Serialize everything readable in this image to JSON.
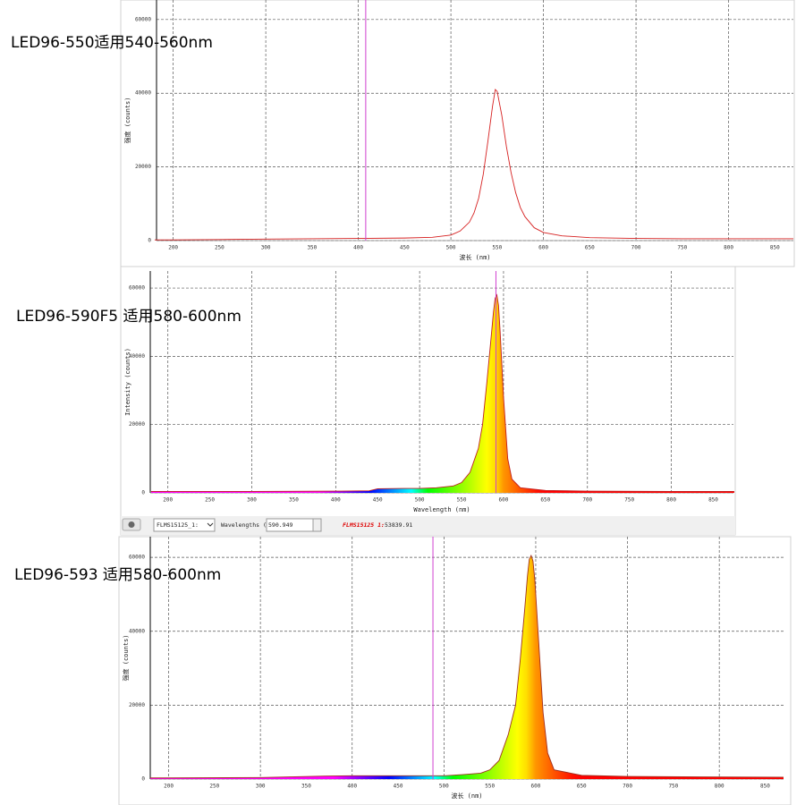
{
  "chart_data": [
    {
      "type": "line",
      "title": "LED96-550适用540-560nm",
      "x_label": "波长 (nm)",
      "y_label": "强度 (counts)",
      "x": [
        180,
        200,
        250,
        300,
        350,
        400,
        450,
        480,
        500,
        510,
        520,
        525,
        530,
        535,
        540,
        545,
        548,
        550,
        555,
        560,
        565,
        570,
        575,
        580,
        590,
        600,
        620,
        650,
        700,
        750,
        800,
        870
      ],
      "values": [
        200,
        200,
        300,
        400,
        500,
        600,
        700,
        900,
        1500,
        2600,
        5000,
        7500,
        11500,
        18000,
        27000,
        36500,
        41000,
        40500,
        34000,
        25500,
        18500,
        13000,
        9000,
        6500,
        3500,
        2200,
        1300,
        800,
        600,
        500,
        500,
        500
      ],
      "color": "#d62020",
      "fill": "none",
      "cursor": 408,
      "cursor_color": "#d040d0",
      "xlim": [
        182,
        870
      ],
      "ylim": [
        0,
        65300
      ],
      "xticks": [
        200,
        250,
        300,
        350,
        400,
        450,
        500,
        550,
        600,
        650,
        700,
        750,
        800,
        850
      ],
      "yticks": [
        0,
        20000,
        40000,
        60000
      ],
      "grid": true
    },
    {
      "type": "line",
      "title": "LED96-590F5 适用580-600nm",
      "x_label": "Wavelength (nm)",
      "y_label": "Intensity (counts)",
      "x": [
        180,
        200,
        300,
        400,
        440,
        450,
        480,
        500,
        520,
        540,
        550,
        560,
        570,
        575,
        580,
        585,
        588,
        590,
        592,
        594,
        596,
        600,
        605,
        610,
        620,
        650,
        700,
        800,
        875
      ],
      "values": [
        400,
        400,
        400,
        500,
        600,
        1200,
        1300,
        1300,
        1500,
        2000,
        3000,
        6000,
        13000,
        20000,
        32000,
        45000,
        53000,
        57000,
        58000,
        55000,
        47000,
        28000,
        10000,
        4000,
        1500,
        700,
        500,
        400,
        400
      ],
      "color": "#c02020",
      "fill": "spectrum",
      "cursor": 590.949,
      "cursor_color": "#d040d0",
      "xlim": [
        179,
        874
      ],
      "ylim": [
        0,
        65000
      ],
      "xticks": [
        200,
        250,
        300,
        350,
        400,
        450,
        500,
        550,
        600,
        650,
        700,
        750,
        800,
        850
      ],
      "yticks": [
        0,
        20000,
        40000,
        60000
      ],
      "grid": true
    },
    {
      "type": "line",
      "title": "LED96-593 适用580-600nm",
      "x_label": "波长 (nm)",
      "y_label": "强度 (counts)",
      "x": [
        180,
        200,
        300,
        370,
        400,
        450,
        500,
        520,
        540,
        550,
        560,
        570,
        578,
        583,
        588,
        591,
        593,
        595,
        597,
        599,
        603,
        608,
        613,
        620,
        650,
        700,
        780,
        870
      ],
      "values": [
        300,
        300,
        400,
        800,
        900,
        900,
        900,
        1200,
        1600,
        2500,
        5000,
        12000,
        20000,
        32000,
        46000,
        55000,
        59500,
        60500,
        59000,
        54000,
        38000,
        18000,
        7000,
        2500,
        1000,
        700,
        600,
        500
      ],
      "color": "#a03020",
      "fill": "spectrum",
      "cursor": 488,
      "cursor_color": "#d040d0",
      "xlim": [
        180,
        870
      ],
      "ylim": [
        0,
        65600
      ],
      "xticks": [
        200,
        250,
        300,
        350,
        400,
        450,
        500,
        550,
        600,
        650,
        700,
        750,
        800,
        850
      ],
      "yticks": [
        0,
        20000,
        40000,
        60000
      ],
      "grid": true
    }
  ],
  "toolbar": {
    "device": "FLMS15125_1:",
    "label": "Wavelengths (nm)",
    "wavelength": 590.949,
    "channel": "FLMS15125 1:",
    "intensity": 53839.91
  }
}
